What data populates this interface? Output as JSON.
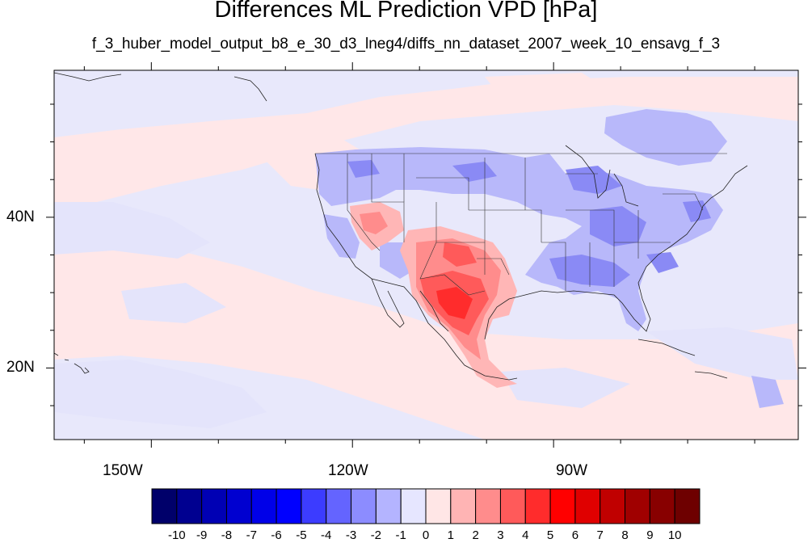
{
  "title": "Differences ML Prediction VPD [hPa]",
  "subtitle": "f_3_huber_model_output_b8_e_30_d3_lneg4/diffs_nn_dataset_2007_week_10_ensavg_f_3",
  "map": {
    "projection": "cylindrical-equidistant",
    "lon_range": [
      -164.5,
      -53.5
    ],
    "lat_range": [
      10.5,
      59.5
    ],
    "lat_ticks": [
      {
        "value": 40,
        "label": "40N"
      },
      {
        "value": 20,
        "label": "20N"
      }
    ],
    "lon_ticks": [
      {
        "value": -150,
        "label": "150W"
      },
      {
        "value": -120,
        "label": "120W"
      },
      {
        "value": -90,
        "label": "90W"
      }
    ],
    "background_level": "0 to 1",
    "features": [
      {
        "region": "Mexican Plateau / Chihuahua",
        "anomaly": "positive",
        "peak": 5
      },
      {
        "region": "Southern Plains / Texas",
        "anomaly": "positive",
        "peak": 4
      },
      {
        "region": "Great Basin / Nevada",
        "anomaly": "positive",
        "peak": 2
      },
      {
        "region": "Southeast US / Gulf Coast",
        "anomaly": "negative",
        "peak": -3
      },
      {
        "region": "Northern Plains / Great Lakes",
        "anomaly": "negative",
        "peak": -3
      },
      {
        "region": "Hudson Bay / Quebec",
        "anomaly": "negative",
        "peak": -2
      }
    ]
  },
  "colorbar": {
    "labels": [
      "-10",
      "-9",
      "-8",
      "-7",
      "-6",
      "-5",
      "-4",
      "-3",
      "-2",
      "-1",
      "0",
      "1",
      "2",
      "3",
      "4",
      "5",
      "6",
      "7",
      "8",
      "9",
      "10"
    ],
    "colors": [
      "#00006a",
      "#000090",
      "#0000b4",
      "#0000d0",
      "#0000e8",
      "#0000ff",
      "#3c3cff",
      "#6464ff",
      "#8c8cff",
      "#b4b4ff",
      "#e6e6ff",
      "#ffe6e6",
      "#ffb4b4",
      "#ff8c8c",
      "#ff5a5a",
      "#ff2c2c",
      "#ff0000",
      "#e00000",
      "#c00000",
      "#a00000",
      "#880000",
      "#6e0000"
    ]
  }
}
